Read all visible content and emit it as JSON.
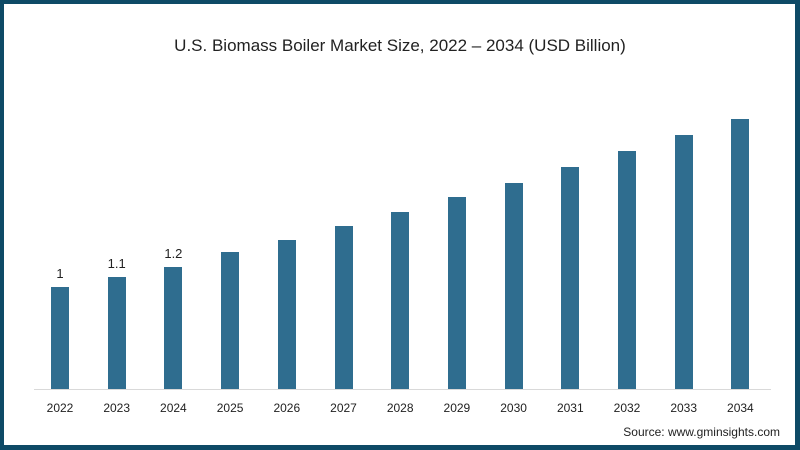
{
  "chart_data": {
    "type": "bar",
    "title": "U.S. Biomass Boiler Market Size, 2022 – 2034  (USD Billion)",
    "xlabel": "",
    "ylabel": "USD Billion",
    "categories": [
      "2022",
      "2023",
      "2024",
      "2025",
      "2026",
      "2027",
      "2028",
      "2029",
      "2030",
      "2031",
      "2032",
      "2033",
      "2034"
    ],
    "values": [
      1.0,
      1.1,
      1.2,
      1.34,
      1.46,
      1.6,
      1.74,
      1.88,
      2.02,
      2.18,
      2.33,
      2.49,
      2.65
    ],
    "data_labels": [
      "1",
      "1.1",
      "1.2",
      "",
      "",
      "",
      "",
      "",
      "",
      "",
      "",
      "",
      ""
    ],
    "ylim": [
      0,
      2.8
    ],
    "grid": false,
    "legend": "none",
    "bar_color": "#2f6d8f"
  },
  "source": "Source: www.gminsights.com",
  "colors": {
    "frame": "#0e4a66",
    "bar": "#2f6d8f"
  }
}
